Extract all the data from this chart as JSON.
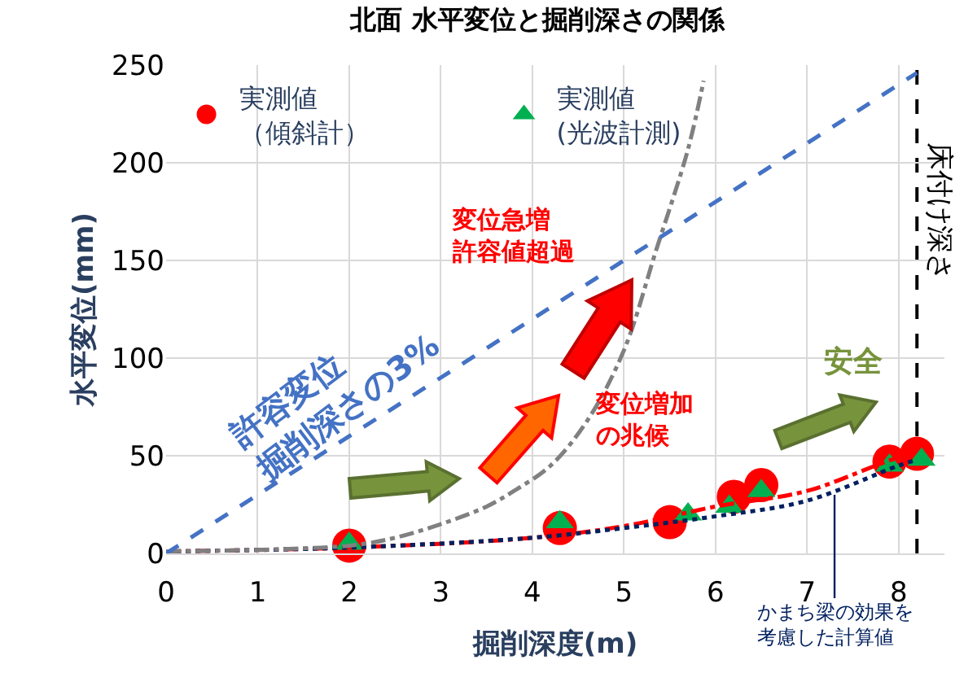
{
  "chart_data": {
    "type": "scatter",
    "title": "北面 水平変位と掘削深さの関係",
    "xlabel": "掘削深度(m)",
    "ylabel": "水平変位(mm)",
    "xlim": [
      0,
      8.5
    ],
    "xticks": [
      0,
      1,
      2,
      3,
      4,
      5,
      6,
      7,
      8
    ],
    "ylim": [
      0,
      250
    ],
    "yticks": [
      0,
      50,
      100,
      150,
      200,
      250
    ],
    "grid": true,
    "legend": "top left",
    "series": [
      {
        "name": "実測値（傾斜計）",
        "marker": "circle",
        "color": "#ff0000",
        "x": [
          2,
          4.3,
          5.5,
          6.2,
          6.5,
          7.9,
          8.2
        ],
        "values": [
          4,
          13,
          16,
          29,
          35,
          47,
          51
        ]
      },
      {
        "name": "実測値(光波計測)",
        "marker": "triangle",
        "color": "#00b050",
        "x": [
          2,
          4.3,
          5.7,
          6.15,
          6.5,
          7.9,
          8.25
        ],
        "values": [
          5,
          16,
          20,
          24,
          32,
          45,
          48
        ]
      },
      {
        "type": "line",
        "line_style": "dashdot",
        "color": "#ff0000",
        "x": [
          0,
          2,
          4,
          5,
          6,
          7,
          8,
          8.2
        ],
        "values": [
          1,
          3,
          8,
          14,
          24,
          32,
          49,
          50
        ]
      },
      {
        "type": "line",
        "line_style": "dotted",
        "color": "#002060",
        "x": [
          0,
          2,
          4,
          5,
          6,
          7,
          8,
          8.2
        ],
        "values": [
          1,
          3,
          8,
          13,
          19,
          27,
          45,
          48
        ]
      },
      {
        "type": "line",
        "line_style": "dashdot",
        "color": "#808080",
        "x": [
          0,
          2,
          2.5,
          3,
          3.5,
          3.8,
          4.2,
          4.6,
          5,
          5.35,
          5.7,
          5.87
        ],
        "values": [
          1,
          4,
          8,
          15,
          24,
          32,
          45,
          68,
          104,
          155,
          207,
          242
        ]
      },
      {
        "type": "line",
        "line_style": "dashed",
        "color": "#4472c4",
        "x": [
          0,
          8.2
        ],
        "values": [
          0,
          246
        ]
      }
    ],
    "ref_lines": [
      {
        "axis": "x",
        "value": 8.2,
        "label": "床付け深さ",
        "color": "#000000",
        "line_style": "dashed"
      }
    ],
    "annotations": [
      "変位急増許容値超過",
      "変位増加の兆候",
      "安全",
      "許容変位掘削深さの3%",
      {
        "text": "かまち梁の効果を考慮した計算値",
        "x": 7.3,
        "y": 30
      }
    ]
  }
}
